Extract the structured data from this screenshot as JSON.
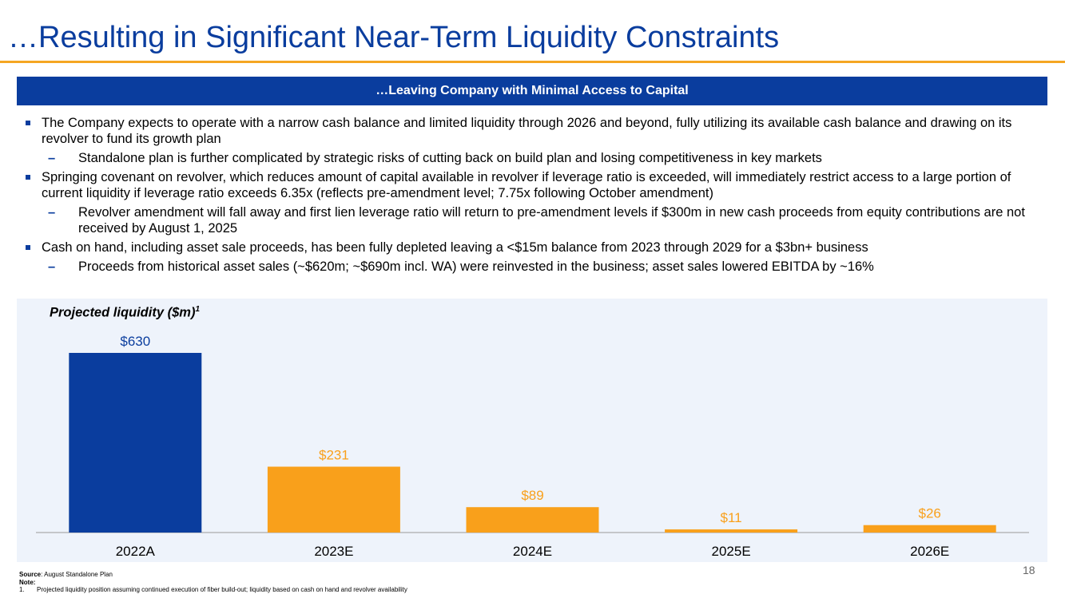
{
  "page": {
    "title": "…Resulting in Significant Near-Term Liquidity Constraints",
    "banner": "…Leaving Company with Minimal Access to Capital",
    "page_number": "18"
  },
  "bullets": [
    {
      "text": "The Company expects to operate with a narrow cash balance and limited liquidity through 2026 and beyond, fully utilizing its available cash balance and drawing on its revolver to fund its growth plan",
      "subs": [
        "Standalone plan is further complicated by strategic risks of cutting back on build plan and losing competitiveness in key markets"
      ]
    },
    {
      "text": "Springing covenant on revolver, which reduces amount of capital available in revolver if leverage ratio is exceeded, will immediately restrict access to a large portion of current liquidity if leverage ratio exceeds 6.35x (reflects pre-amendment level; 7.75x following October amendment)",
      "subs": [
        "Revolver amendment will fall away and first lien leverage ratio will return to pre-amendment levels if $300m in new cash proceeds from equity contributions are not received by August 1, 2025"
      ]
    },
    {
      "text": "Cash on hand, including asset sale proceeds, has been fully depleted leaving a <$15m balance from 2023 through 2029 for a $3bn+ business",
      "subs": [
        "Proceeds from historical asset sales (~$620m; ~$690m incl. WA) were reinvested in the business; asset sales lowered EBITDA by ~16%"
      ]
    }
  ],
  "sub_marker": "–",
  "chart_data": {
    "type": "bar",
    "title": "Projected liquidity ($m)",
    "title_superscript": "1",
    "categories": [
      "2022A",
      "2023E",
      "2024E",
      "2025E",
      "2026E"
    ],
    "values": [
      630,
      231,
      89,
      11,
      26
    ],
    "data_labels": [
      "$630",
      "$231",
      "$89",
      "$11",
      "$26"
    ],
    "colors": [
      "#0a3d9e",
      "#f9a01b",
      "#f9a01b",
      "#f9a01b",
      "#f9a01b"
    ],
    "label_colors": [
      "#0a3d9e",
      "#f9a01b",
      "#f9a01b",
      "#f9a01b",
      "#f9a01b"
    ],
    "ylim": [
      0,
      630
    ],
    "xlabel": "",
    "ylabel": ""
  },
  "footer": {
    "source_label": "Source",
    "source_text": ": August Standalone Plan",
    "note_label": "Note:",
    "note_number": "1.",
    "note_text": "Projected liquidity position assuming continued execution of fiber build-out; liquidity based on cash on hand and revolver availability"
  }
}
